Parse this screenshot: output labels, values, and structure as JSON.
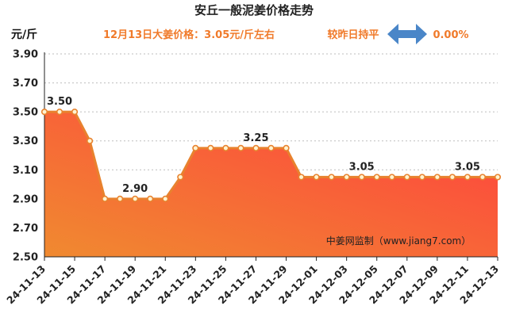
{
  "header": {
    "title": "安丘一般泥姜价格走势",
    "unit_label": "元/斤",
    "price_note": "12月13日大姜价格：3.05元/斤左右",
    "change_label": "较昨日持平",
    "change_value": "0.00%",
    "change_icon": "double-arrow-icon"
  },
  "watermark": "中姜网监制（www.jiang7.com）",
  "colors": {
    "line": "#e8822e",
    "fill_top": "#ff3f3f",
    "fill_bottom": "#f08a30",
    "text_accent": "#f07a2a",
    "arrow": "#4a86c8"
  },
  "chart_data": {
    "type": "area",
    "title": "安丘一般泥姜价格走势",
    "ylabel": "元/斤",
    "xlabel": "",
    "ylim": [
      2.5,
      3.9
    ],
    "yticks": [
      "2.50",
      "2.70",
      "2.90",
      "3.10",
      "3.30",
      "3.50",
      "3.70",
      "3.90"
    ],
    "x": [
      "24-11-13",
      "24-11-14",
      "24-11-15",
      "24-11-16",
      "24-11-17",
      "24-11-18",
      "24-11-19",
      "24-11-20",
      "24-11-21",
      "24-11-22",
      "24-11-23",
      "24-11-24",
      "24-11-25",
      "24-11-26",
      "24-11-27",
      "24-11-28",
      "24-11-29",
      "24-11-30",
      "24-12-01",
      "24-12-02",
      "24-12-03",
      "24-12-04",
      "24-12-05",
      "24-12-06",
      "24-12-07",
      "24-12-08",
      "24-12-09",
      "24-12-10",
      "24-12-11",
      "24-12-12",
      "24-12-13"
    ],
    "xticks": [
      "24-11-13",
      "24-11-15",
      "24-11-17",
      "24-11-19",
      "24-11-21",
      "24-11-23",
      "24-11-25",
      "24-11-27",
      "24-11-29",
      "24-12-01",
      "24-12-03",
      "24-12-05",
      "24-12-07",
      "24-12-09",
      "24-12-11",
      "24-12-13"
    ],
    "values": [
      3.5,
      3.5,
      3.5,
      3.3,
      2.9,
      2.9,
      2.9,
      2.9,
      2.9,
      3.05,
      3.25,
      3.25,
      3.25,
      3.25,
      3.25,
      3.25,
      3.25,
      3.05,
      3.05,
      3.05,
      3.05,
      3.05,
      3.05,
      3.05,
      3.05,
      3.05,
      3.05,
      3.05,
      3.05,
      3.05,
      3.05
    ],
    "data_labels": [
      {
        "x": "24-11-14",
        "text": "3.50"
      },
      {
        "x": "24-11-19",
        "text": "2.90"
      },
      {
        "x": "24-11-27",
        "text": "3.25"
      },
      {
        "x": "24-12-04",
        "text": "3.05"
      },
      {
        "x": "24-12-11",
        "text": "3.05"
      }
    ],
    "grid": "horizontal-dashed",
    "legend": "none"
  }
}
